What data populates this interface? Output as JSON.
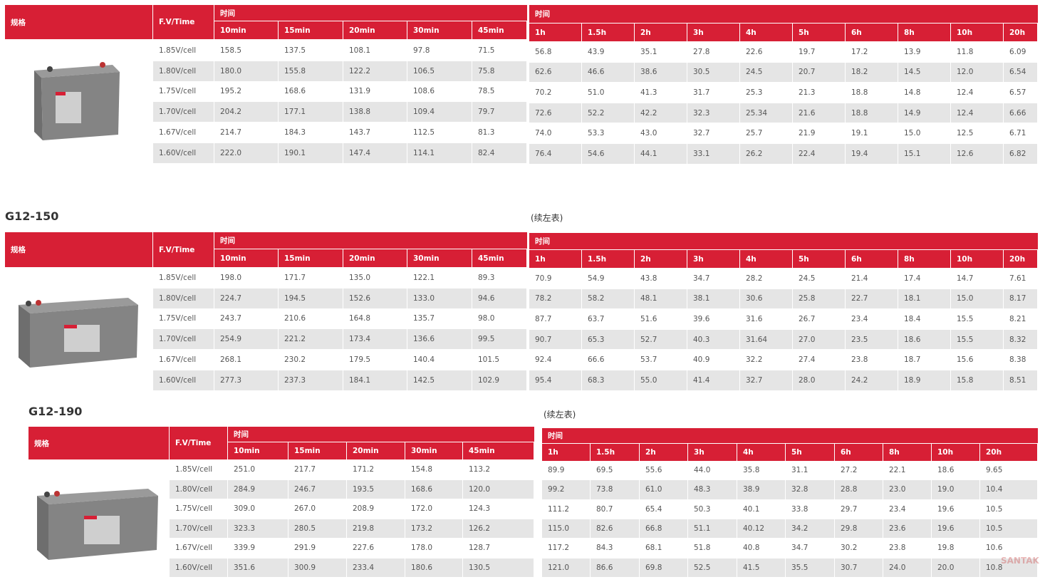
{
  "blocks": [
    {
      "left": {
        "spec_header": "规格",
        "fv_header": "F.V/Time",
        "time_header": "时间",
        "columns": [
          "10min",
          "15min",
          "20min",
          "30min",
          "45min"
        ],
        "rows": [
          {
            "label": "1.85V/cell",
            "values": [
              "158.5",
              "137.5",
              "108.1",
              "97.8",
              "71.5"
            ]
          },
          {
            "label": "1.80V/cell",
            "values": [
              "180.0",
              "155.8",
              "122.2",
              "106.5",
              "75.8"
            ]
          },
          {
            "label": "1.75V/cell",
            "values": [
              "195.2",
              "168.6",
              "131.9",
              "108.6",
              "78.5"
            ]
          },
          {
            "label": "1.70V/cell",
            "values": [
              "204.2",
              "177.1",
              "138.8",
              "109.4",
              "79.7"
            ]
          },
          {
            "label": "1.67V/cell",
            "values": [
              "214.7",
              "184.3",
              "143.7",
              "112.5",
              "81.3"
            ]
          },
          {
            "label": "1.60V/cell",
            "values": [
              "222.0",
              "190.1",
              "147.4",
              "114.1",
              "82.4"
            ]
          }
        ]
      },
      "right": {
        "time_header": "时间",
        "columns": [
          "1h",
          "1.5h",
          "2h",
          "3h",
          "4h",
          "5h",
          "6h",
          "8h",
          "10h",
          "20h"
        ],
        "rows": [
          [
            "56.8",
            "43.9",
            "35.1",
            "27.8",
            "22.6",
            "19.7",
            "17.2",
            "13.9",
            "11.8",
            "6.09"
          ],
          [
            "62.6",
            "46.6",
            "38.6",
            "30.5",
            "24.5",
            "20.7",
            "18.2",
            "14.5",
            "12.0",
            "6.54"
          ],
          [
            "70.2",
            "51.0",
            "41.3",
            "31.7",
            "25.3",
            "21.3",
            "18.8",
            "14.8",
            "12.4",
            "6.57"
          ],
          [
            "72.6",
            "52.2",
            "42.2",
            "32.3",
            "25.34",
            "21.6",
            "18.8",
            "14.9",
            "12.4",
            "6.66"
          ],
          [
            "74.0",
            "53.3",
            "43.0",
            "32.7",
            "25.7",
            "21.9",
            "19.1",
            "15.0",
            "12.5",
            "6.71"
          ],
          [
            "76.4",
            "54.6",
            "44.1",
            "33.1",
            "26.2",
            "22.4",
            "19.4",
            "15.1",
            "12.6",
            "6.82"
          ]
        ]
      }
    },
    {
      "model": "G12-150",
      "continued": "(续左表)",
      "left": {
        "spec_header": "规格",
        "fv_header": "F.V/Time",
        "time_header": "时间",
        "columns": [
          "10min",
          "15min",
          "20min",
          "30min",
          "45min"
        ],
        "rows": [
          {
            "label": "1.85V/cell",
            "values": [
              "198.0",
              "171.7",
              "135.0",
              "122.1",
              "89.3"
            ]
          },
          {
            "label": "1.80V/cell",
            "values": [
              "224.7",
              "194.5",
              "152.6",
              "133.0",
              "94.6"
            ]
          },
          {
            "label": "1.75V/cell",
            "values": [
              "243.7",
              "210.6",
              "164.8",
              "135.7",
              "98.0"
            ]
          },
          {
            "label": "1.70V/cell",
            "values": [
              "254.9",
              "221.2",
              "173.4",
              "136.6",
              "99.5"
            ]
          },
          {
            "label": "1.67V/cell",
            "values": [
              "268.1",
              "230.2",
              "179.5",
              "140.4",
              "101.5"
            ]
          },
          {
            "label": "1.60V/cell",
            "values": [
              "277.3",
              "237.3",
              "184.1",
              "142.5",
              "102.9"
            ]
          }
        ]
      },
      "right": {
        "time_header": "时间",
        "columns": [
          "1h",
          "1.5h",
          "2h",
          "3h",
          "4h",
          "5h",
          "6h",
          "8h",
          "10h",
          "20h"
        ],
        "rows": [
          [
            "70.9",
            "54.9",
            "43.8",
            "34.7",
            "28.2",
            "24.5",
            "21.4",
            "17.4",
            "14.7",
            "7.61"
          ],
          [
            "78.2",
            "58.2",
            "48.1",
            "38.1",
            "30.6",
            "25.8",
            "22.7",
            "18.1",
            "15.0",
            "8.17"
          ],
          [
            "87.7",
            "63.7",
            "51.6",
            "39.6",
            "31.6",
            "26.7",
            "23.4",
            "18.4",
            "15.5",
            "8.21"
          ],
          [
            "90.7",
            "65.3",
            "52.7",
            "40.3",
            "31.64",
            "27.0",
            "23.5",
            "18.6",
            "15.5",
            "8.32"
          ],
          [
            "92.4",
            "66.6",
            "53.7",
            "40.9",
            "32.2",
            "27.4",
            "23.8",
            "18.7",
            "15.6",
            "8.38"
          ],
          [
            "95.4",
            "68.3",
            "55.0",
            "41.4",
            "32.7",
            "28.0",
            "24.2",
            "18.9",
            "15.8",
            "8.51"
          ]
        ]
      }
    },
    {
      "model": "G12-190",
      "continued": "(续左表)",
      "left": {
        "spec_header": "规格",
        "fv_header": "F.V/Time",
        "time_header": "时间",
        "columns": [
          "10min",
          "15min",
          "20min",
          "30min",
          "45min"
        ],
        "rows": [
          {
            "label": "1.85V/cell",
            "values": [
              "251.0",
              "217.7",
              "171.2",
              "154.8",
              "113.2"
            ]
          },
          {
            "label": "1.80V/cell",
            "values": [
              "284.9",
              "246.7",
              "193.5",
              "168.6",
              "120.0"
            ]
          },
          {
            "label": "1.75V/cell",
            "values": [
              "309.0",
              "267.0",
              "208.9",
              "172.0",
              "124.3"
            ]
          },
          {
            "label": "1.70V/cell",
            "values": [
              "323.3",
              "280.5",
              "219.8",
              "173.2",
              "126.2"
            ]
          },
          {
            "label": "1.67V/cell",
            "values": [
              "339.9",
              "291.9",
              "227.6",
              "178.0",
              "128.7"
            ]
          },
          {
            "label": "1.60V/cell",
            "values": [
              "351.6",
              "300.9",
              "233.4",
              "180.6",
              "130.5"
            ]
          }
        ]
      },
      "right": {
        "time_header": "时间",
        "columns": [
          "1h",
          "1.5h",
          "2h",
          "3h",
          "4h",
          "5h",
          "6h",
          "8h",
          "10h",
          "20h"
        ],
        "rows": [
          [
            "89.9",
            "69.5",
            "55.6",
            "44.0",
            "35.8",
            "31.1",
            "27.2",
            "22.1",
            "18.6",
            "9.65"
          ],
          [
            "99.2",
            "73.8",
            "61.0",
            "48.3",
            "38.9",
            "32.8",
            "28.8",
            "23.0",
            "19.0",
            "10.4"
          ],
          [
            "111.2",
            "80.7",
            "65.4",
            "50.3",
            "40.1",
            "33.8",
            "29.7",
            "23.4",
            "19.6",
            "10.5"
          ],
          [
            "115.0",
            "82.6",
            "66.8",
            "51.1",
            "40.12",
            "34.2",
            "29.8",
            "23.6",
            "19.6",
            "10.5"
          ],
          [
            "117.2",
            "84.3",
            "68.1",
            "51.8",
            "40.8",
            "34.7",
            "30.2",
            "23.8",
            "19.8",
            "10.6"
          ],
          [
            "121.0",
            "86.6",
            "69.8",
            "52.5",
            "41.5",
            "35.5",
            "30.7",
            "24.0",
            "20.0",
            "10.8"
          ]
        ]
      }
    }
  ],
  "watermark": "SANTAK"
}
